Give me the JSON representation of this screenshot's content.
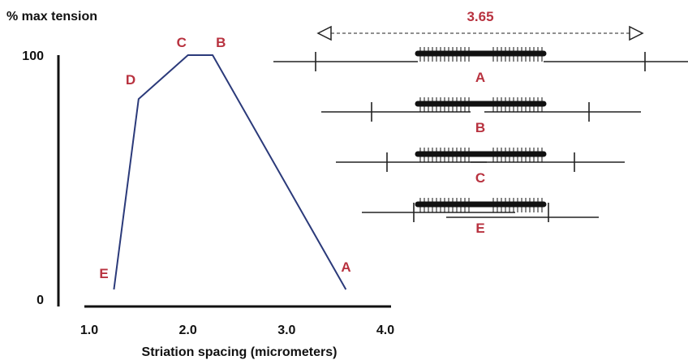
{
  "chart_data": {
    "type": "line",
    "ylabel": "% max tension",
    "xlabel": "Striation spacing (micrometers)",
    "xlim": [
      1.0,
      4.0
    ],
    "ylim": [
      0,
      100
    ],
    "x_ticks": [
      "1.0",
      "2.0",
      "3.0",
      "4.0"
    ],
    "y_ticks": [
      "0",
      "100"
    ],
    "grid": false,
    "points": [
      {
        "label": "E",
        "x": 1.25,
        "y": 4
      },
      {
        "label": "D",
        "x": 1.5,
        "y": 82
      },
      {
        "label": "C",
        "x": 2.0,
        "y": 100
      },
      {
        "label": "B",
        "x": 2.25,
        "y": 100
      },
      {
        "label": "A",
        "x": 3.6,
        "y": 4
      }
    ],
    "line_color": "#2b3a7a",
    "label_color": "#b8323f"
  },
  "sarcomere_diagram": {
    "spacing_label": "3.65",
    "states": [
      "A",
      "B",
      "C",
      "E"
    ]
  }
}
